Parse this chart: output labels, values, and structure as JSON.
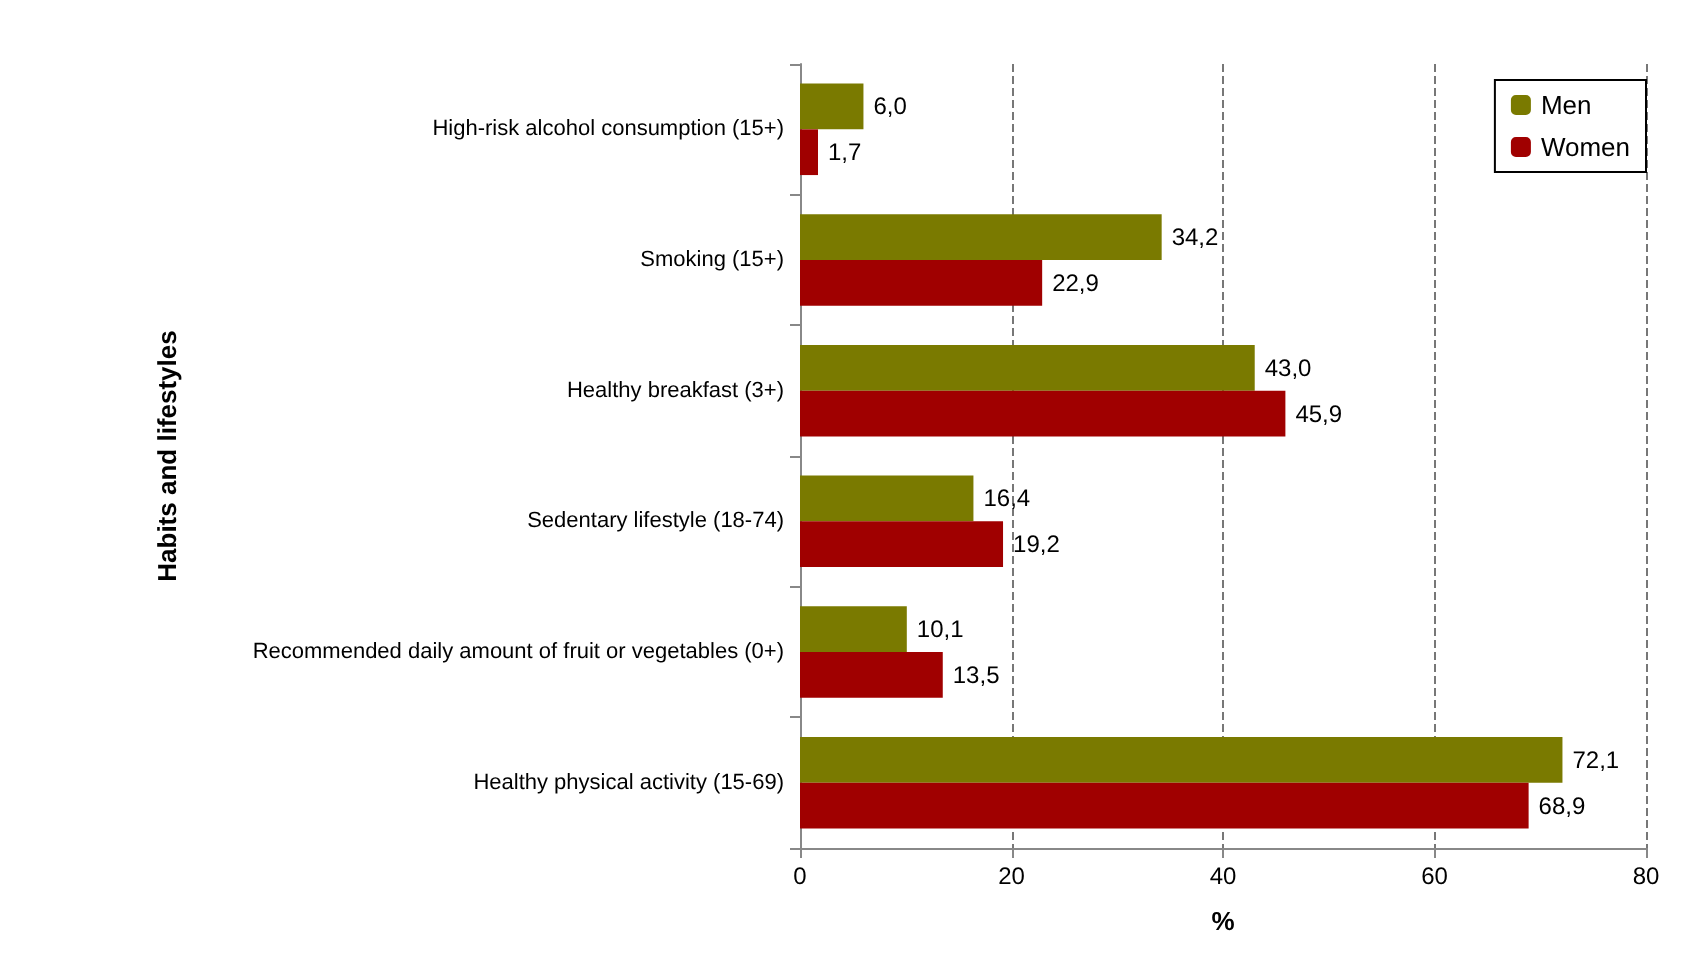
{
  "chart_data": {
    "type": "bar",
    "orientation": "horizontal",
    "ylabel": "Habits and lifestyles",
    "xlabel": "%",
    "categories": [
      "High-risk alcohol consumption (15+)",
      "Smoking (15+)",
      "Healthy breakfast (3+)",
      "Sedentary lifestyle (18-74)",
      "Recommended daily amount of fruit or vegetables (0+)",
      "Healthy physical activity (15-69)"
    ],
    "series": [
      {
        "name": "Men",
        "color": "#7a7a00",
        "values": [
          6.0,
          34.2,
          43.0,
          16.4,
          10.1,
          72.1
        ],
        "value_labels": [
          "6,0",
          "34,2",
          "43,0",
          "16,4",
          "10,1",
          "72,1"
        ]
      },
      {
        "name": "Women",
        "color": "#a00000",
        "values": [
          1.7,
          22.9,
          45.9,
          19.2,
          13.5,
          68.9
        ],
        "value_labels": [
          "1,7",
          "22,9",
          "45,9",
          "19,2",
          "13,5",
          "68,9"
        ]
      }
    ],
    "xlim": [
      0,
      80
    ],
    "xticks": [
      0,
      20,
      40,
      60,
      80
    ],
    "grid": "x",
    "legend": "top right"
  }
}
